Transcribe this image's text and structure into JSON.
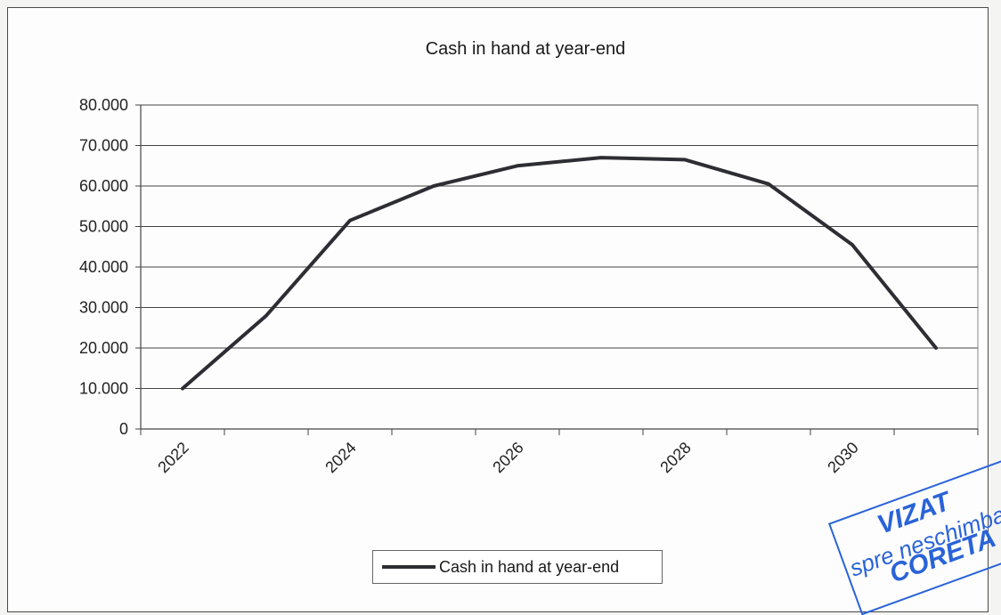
{
  "chart_data": {
    "type": "line",
    "title": "Cash in hand at year-end",
    "xlabel": "",
    "ylabel": "",
    "x": [
      2022,
      2023,
      2024,
      2025,
      2026,
      2027,
      2028,
      2029,
      2030,
      2031
    ],
    "x_tick_labels": [
      "2022",
      "2024",
      "2026",
      "2028",
      "2030"
    ],
    "x_tick_values": [
      2022,
      2024,
      2026,
      2028,
      2030
    ],
    "y_tick_labels": [
      "0",
      "10.000",
      "20.000",
      "30.000",
      "40.000",
      "50.000",
      "60.000",
      "70.000",
      "80.000"
    ],
    "y_tick_values": [
      0,
      10000,
      20000,
      30000,
      40000,
      50000,
      60000,
      70000,
      80000
    ],
    "ylim": [
      0,
      80000
    ],
    "grid": true,
    "legend": "bottom",
    "series": [
      {
        "name": "Cash in hand at year-end",
        "color": "#2d2d34",
        "values": [
          10000,
          28000,
          51500,
          60000,
          65000,
          67000,
          66500,
          60500,
          45500,
          20000
        ]
      }
    ]
  },
  "stamp": {
    "line1": "VIZAT",
    "line2": "spre neschimbare",
    "line3": "CORETA",
    "color": "#2a63d8"
  }
}
